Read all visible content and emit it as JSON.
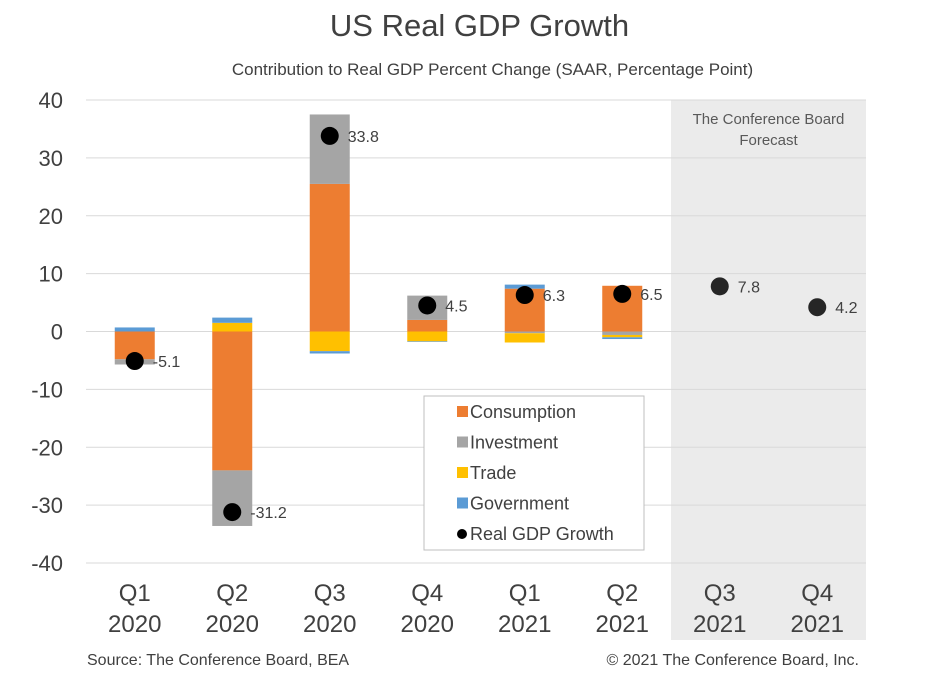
{
  "chart_data": {
    "type": "bar",
    "stacked": true,
    "title": "US Real GDP Growth",
    "subtitle": "Contribution to Real GDP Percent Change (SAAR, Percentage Point)",
    "categories": [
      [
        "Q1",
        "2020"
      ],
      [
        "Q2",
        "2020"
      ],
      [
        "Q3",
        "2020"
      ],
      [
        "Q4",
        "2020"
      ],
      [
        "Q1",
        "2021"
      ],
      [
        "Q2",
        "2021"
      ],
      [
        "Q3",
        "2021"
      ],
      [
        "Q4",
        "2021"
      ]
    ],
    "ylim": [
      -40,
      40
    ],
    "yticks": [
      40,
      30,
      20,
      10,
      0,
      -10,
      -20,
      -30,
      -40
    ],
    "grid": true,
    "series": [
      {
        "name": "Consumption",
        "color": "#ED7D31",
        "values": [
          -4.8,
          -24.0,
          25.5,
          2.0,
          7.4,
          7.9,
          null,
          null
        ]
      },
      {
        "name": "Investment",
        "color": "#A5A5A5",
        "values": [
          -0.9,
          -9.6,
          12.0,
          4.2,
          -0.3,
          -0.6,
          null,
          null
        ]
      },
      {
        "name": "Trade",
        "color": "#FFC000",
        "values": [
          0.0,
          1.5,
          -3.4,
          -1.7,
          -1.6,
          -0.4,
          null,
          null
        ]
      },
      {
        "name": "Government",
        "color": "#5B9BD5",
        "values": [
          0.7,
          0.9,
          -0.4,
          -0.1,
          0.7,
          -0.3,
          null,
          null
        ]
      }
    ],
    "line_points": {
      "name": "Real GDP Growth",
      "values": [
        -5.1,
        -31.2,
        33.8,
        4.5,
        6.3,
        6.5,
        7.8,
        4.2
      ],
      "labels": [
        "-5.1",
        "-31.2",
        "33.8",
        "4.5",
        "6.3",
        "6.5",
        "7.8",
        "4.2"
      ]
    },
    "forecast_region": {
      "label_lines": [
        "The Conference Board",
        "Forecast"
      ],
      "start_index": 6,
      "color": "#EBEBEB"
    },
    "legend": {
      "placement": "lower-center",
      "entries": [
        "Consumption",
        "Investment",
        "Trade",
        "Government",
        "Real GDP Growth"
      ]
    }
  },
  "footer": {
    "source": "Source: The Conference Board, BEA",
    "copyright": "© 2021 The Conference Board, Inc."
  }
}
